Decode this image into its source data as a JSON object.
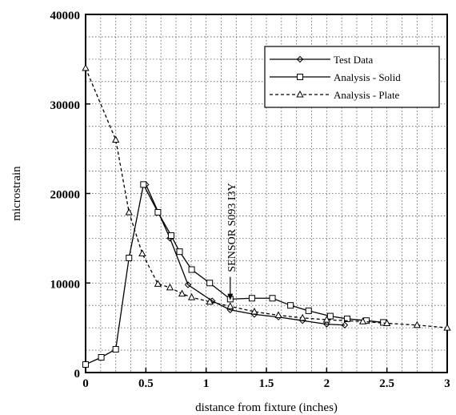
{
  "chart_data": {
    "type": "line",
    "title": "",
    "xlabel": "distance from fixture (inches)",
    "ylabel": "microstrain",
    "xlim": [
      0,
      3
    ],
    "ylim": [
      0,
      40000
    ],
    "xticks": [
      0,
      0.5,
      1,
      1.5,
      2,
      2.5,
      3
    ],
    "xtick_labels": [
      "0",
      "0.5",
      "1",
      "1.5",
      "2",
      "2.5",
      "3"
    ],
    "yticks": [
      0,
      10000,
      20000,
      30000,
      40000
    ],
    "ytick_labels": [
      "0",
      "10000",
      "20000",
      "30000",
      "40000"
    ],
    "grid": true,
    "legend_position": "top-right",
    "series": [
      {
        "name": "Test Data",
        "line_style": "solid",
        "marker": "diamond",
        "points": [
          [
            0.5,
            21000
          ],
          [
            0.7,
            15000
          ],
          [
            0.85,
            9800
          ],
          [
            1.05,
            8000
          ],
          [
            1.2,
            7000
          ],
          [
            1.4,
            6500
          ],
          [
            1.6,
            6200
          ],
          [
            1.8,
            5800
          ],
          [
            2.0,
            5400
          ],
          [
            2.15,
            5300
          ]
        ]
      },
      {
        "name": "Analysis - Solid",
        "line_style": "solid",
        "marker": "square",
        "points": [
          [
            0.0,
            900
          ],
          [
            0.13,
            1700
          ],
          [
            0.25,
            2600
          ],
          [
            0.36,
            12800
          ],
          [
            0.48,
            21000
          ],
          [
            0.6,
            17900
          ],
          [
            0.71,
            15300
          ],
          [
            0.78,
            13500
          ],
          [
            0.88,
            11500
          ],
          [
            1.03,
            10000
          ],
          [
            1.2,
            8200
          ],
          [
            1.38,
            8300
          ],
          [
            1.55,
            8300
          ],
          [
            1.7,
            7500
          ],
          [
            1.85,
            6900
          ],
          [
            2.03,
            6300
          ],
          [
            2.17,
            6000
          ],
          [
            2.33,
            5800
          ],
          [
            2.47,
            5600
          ]
        ]
      },
      {
        "name": "Analysis - Plate",
        "line_style": "dashed",
        "marker": "triangle",
        "points": [
          [
            0.0,
            34000
          ],
          [
            0.25,
            26000
          ],
          [
            0.36,
            17900
          ],
          [
            0.47,
            13300
          ],
          [
            0.6,
            9900
          ],
          [
            0.7,
            9500
          ],
          [
            0.8,
            8800
          ],
          [
            0.88,
            8400
          ],
          [
            1.03,
            7900
          ],
          [
            1.2,
            7400
          ],
          [
            1.4,
            6800
          ],
          [
            1.6,
            6400
          ],
          [
            1.8,
            6100
          ],
          [
            2.0,
            5900
          ],
          [
            2.3,
            5700
          ],
          [
            2.5,
            5500
          ],
          [
            2.75,
            5300
          ],
          [
            3.0,
            5000
          ]
        ]
      }
    ],
    "annotation": {
      "text": "SENSOR S093 I3Y",
      "x": 1.2,
      "y": 8000
    }
  }
}
